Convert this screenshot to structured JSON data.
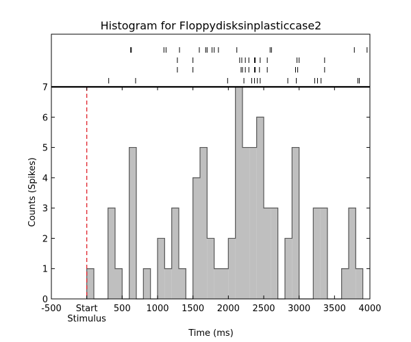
{
  "chart_data": {
    "type": "histogram",
    "title": "Histogram for Floppydisksinplasticcase2",
    "xlabel": "Time (ms)",
    "ylabel": "Counts (Spikes)",
    "xlim": [
      -500,
      4000
    ],
    "ylim": [
      0,
      7
    ],
    "x_ticks": [
      -500,
      0,
      500,
      1000,
      1500,
      2000,
      2500,
      3000,
      3500,
      4000
    ],
    "x_tick_labels": [
      "-500",
      "Start",
      "500",
      "1000",
      "1500",
      "2000",
      "2500",
      "3000",
      "3500",
      "4000"
    ],
    "x_tick_sublabel": "Stimulus",
    "y_ticks": [
      0,
      1,
      2,
      3,
      4,
      5,
      6,
      7
    ],
    "bin_width": 100,
    "bin_start": 0,
    "bin_counts": [
      1,
      0,
      0,
      3,
      1,
      0,
      5,
      0,
      1,
      0,
      2,
      1,
      3,
      1,
      0,
      4,
      5,
      2,
      1,
      1,
      2,
      7,
      5,
      5,
      6,
      3,
      3,
      0,
      2,
      5,
      0,
      0,
      3,
      3,
      0,
      0,
      1,
      3,
      1
    ],
    "fill_color": "#bfbfbf",
    "edge_color": "#555555",
    "stimulus_line": {
      "x": 0,
      "color": "#e0202a",
      "style": "dashed"
    },
    "grid": false,
    "raster": {
      "rows": [
        [
          620,
          630,
          1090,
          1120,
          1310,
          1590,
          1680,
          1700,
          1770,
          1800,
          1860,
          2120,
          2590,
          2610,
          3780,
          3960
        ],
        [
          1280,
          1500,
          2160,
          2190,
          2240,
          2290,
          2370,
          2380,
          2450,
          2550,
          2970,
          3000,
          3360
        ],
        [
          1280,
          1500,
          2180,
          2200,
          2240,
          2290,
          2370,
          2380,
          2440,
          2550,
          2950,
          2980,
          3360
        ],
        [
          310,
          690,
          1990,
          2220,
          2330,
          2370,
          2410,
          2450,
          2840,
          2960,
          3220,
          3260,
          3310,
          3830,
          3850
        ]
      ]
    }
  }
}
